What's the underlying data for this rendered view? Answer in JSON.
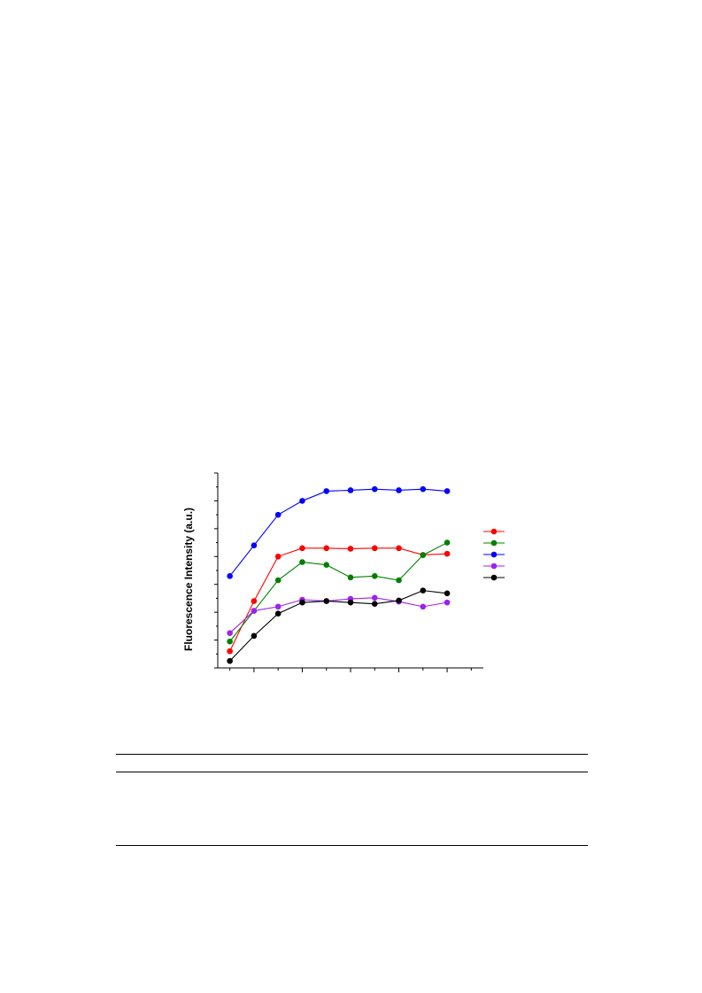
{
  "chart_data": {
    "type": "line",
    "title": "",
    "xlabel": "",
    "ylabel": "Fluorescence Intensity (a.u.)",
    "xlim": [
      0.5,
      11.5
    ],
    "ylim": [
      0,
      7
    ],
    "x": [
      1,
      2,
      3,
      4,
      5,
      6,
      7,
      8,
      9,
      10
    ],
    "legend_position": "right",
    "grid": false,
    "series": [
      {
        "color": "#ff0000",
        "values": [
          0.6,
          2.4,
          4.0,
          4.3,
          4.3,
          4.28,
          4.3,
          4.3,
          4.06,
          4.1
        ]
      },
      {
        "color": "#008000",
        "values": [
          0.95,
          2.05,
          3.15,
          3.8,
          3.7,
          3.25,
          3.3,
          3.15,
          4.05,
          4.5
        ]
      },
      {
        "color": "#0000ff",
        "values": [
          3.3,
          4.4,
          5.5,
          6.0,
          6.35,
          6.38,
          6.42,
          6.38,
          6.42,
          6.35
        ]
      },
      {
        "color": "#a020f0",
        "values": [
          1.25,
          2.05,
          2.2,
          2.45,
          2.4,
          2.48,
          2.52,
          2.38,
          2.2,
          2.35
        ]
      },
      {
        "color": "#000000",
        "values": [
          0.25,
          1.15,
          1.95,
          2.35,
          2.4,
          2.35,
          2.3,
          2.42,
          2.78,
          2.68
        ]
      }
    ]
  }
}
